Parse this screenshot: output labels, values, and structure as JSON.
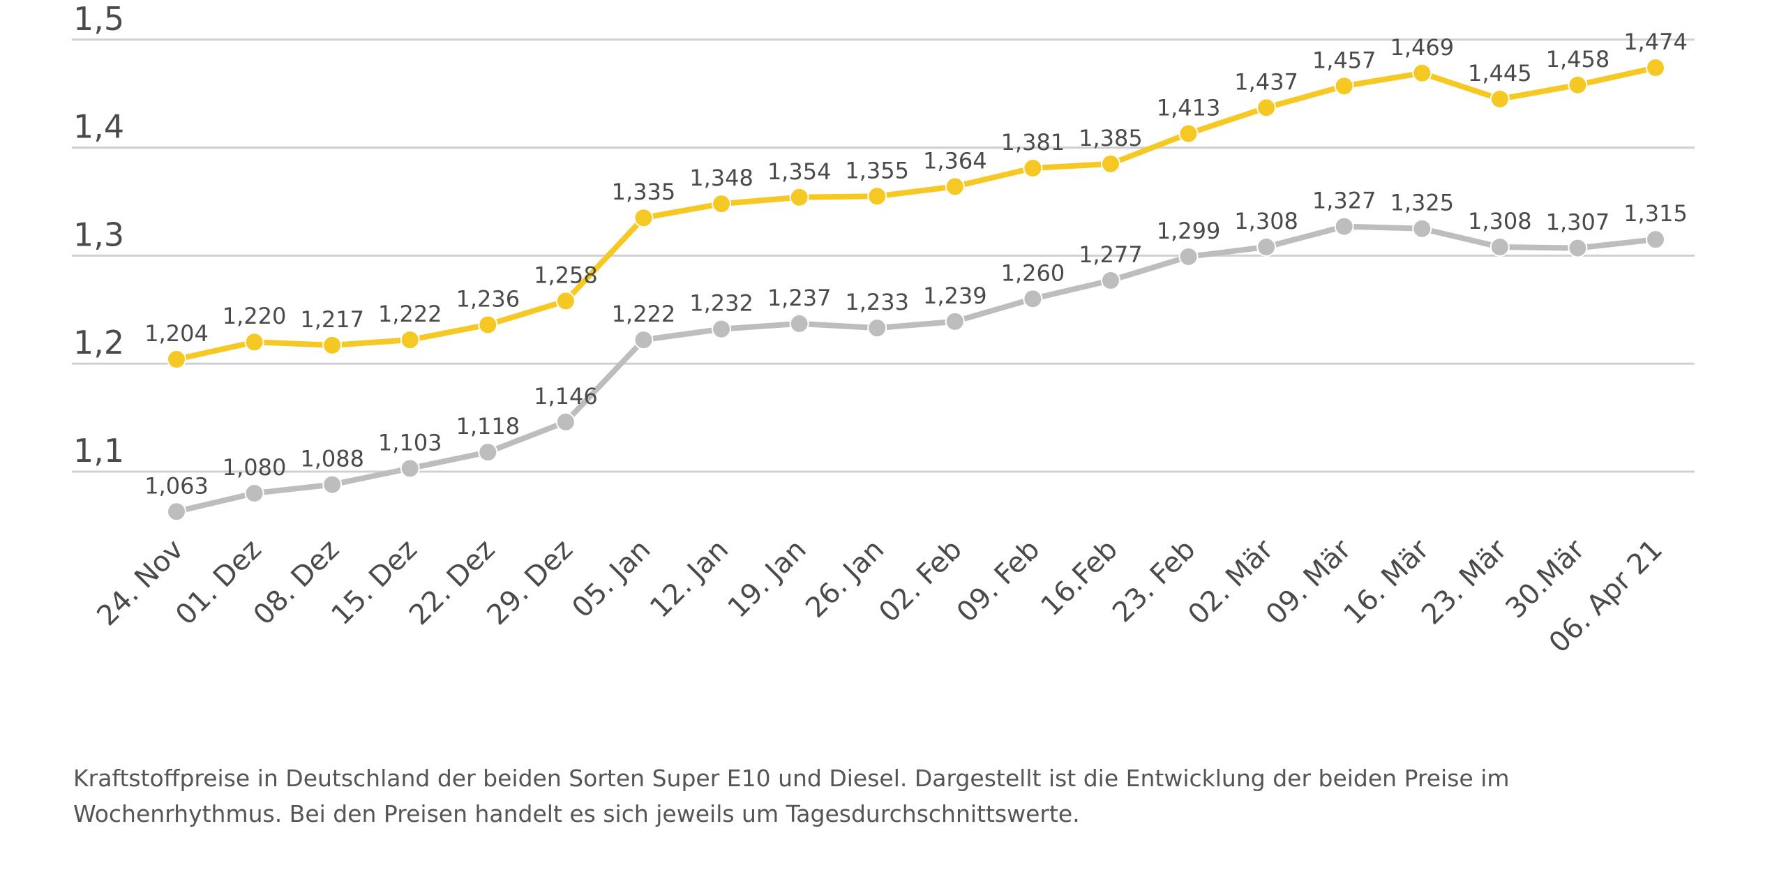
{
  "chart_data": {
    "type": "line",
    "title": "",
    "xlabel": "",
    "ylabel": "",
    "ylim": [
      1.1,
      1.5
    ],
    "yticks": [
      "1,1",
      "1,2",
      "1,3",
      "1,4",
      "1,5"
    ],
    "ytick_values": [
      1.1,
      1.2,
      1.3,
      1.4,
      1.5
    ],
    "grid": true,
    "categories": [
      "24. Nov",
      "01. Dez",
      "08. Dez",
      "15. Dez",
      "22. Dez",
      "29. Dez",
      "05. Jan",
      "12. Jan",
      "19. Jan",
      "26. Jan",
      "02. Feb",
      "09. Feb",
      "16.Feb",
      "23. Feb",
      "02. Mär",
      "09. Mär",
      "16. Mär",
      "23. Mär",
      "30.Mär",
      "06. Apr 21"
    ],
    "series": [
      {
        "name": "Super E10",
        "color": "#f5c823",
        "values": [
          1.204,
          1.22,
          1.217,
          1.222,
          1.236,
          1.258,
          1.335,
          1.348,
          1.354,
          1.355,
          1.364,
          1.381,
          1.385,
          1.413,
          1.437,
          1.457,
          1.469,
          1.445,
          1.458,
          1.474
        ],
        "labels": [
          "1,204",
          "1,220",
          "1,217",
          "1,222",
          "1,236",
          "1,258",
          "1,335",
          "1,348",
          "1,354",
          "1,355",
          "1,364",
          "1,381",
          "1,385",
          "1,413",
          "1,437",
          "1,457",
          "1,469",
          "1,445",
          "1,458",
          "1,474"
        ]
      },
      {
        "name": "Diesel",
        "color": "#bdbdbd",
        "values": [
          1.063,
          1.08,
          1.088,
          1.103,
          1.118,
          1.146,
          1.222,
          1.232,
          1.237,
          1.233,
          1.239,
          1.26,
          1.277,
          1.299,
          1.308,
          1.327,
          1.325,
          1.308,
          1.307,
          1.315
        ],
        "labels": [
          "1,063",
          "1,080",
          "1,088",
          "1,103",
          "1,118",
          "1,146",
          "1,222",
          "1,232",
          "1,237",
          "1,233",
          "1,239",
          "1,260",
          "1,277",
          "1,299",
          "1,308",
          "1,327",
          "1,325",
          "1,308",
          "1,307",
          "1,315"
        ]
      }
    ]
  },
  "caption": "Kraftstoffpreise in Deutschland der beiden Sorten Super E10 und Diesel. Dargestellt ist die Entwicklung der beiden Preise im Wochenrhythmus. Bei den Preisen handelt es sich jeweils um Tagesdurchschnittswerte."
}
